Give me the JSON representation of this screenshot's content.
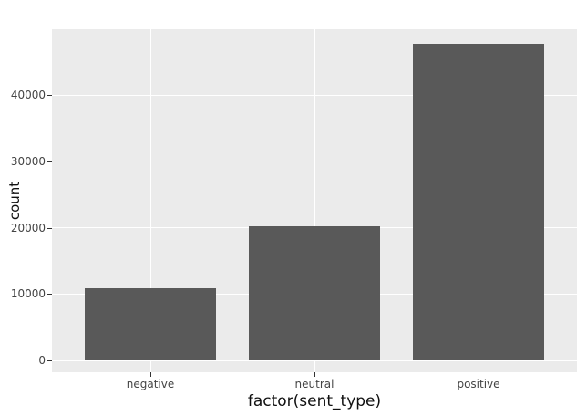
{
  "chart_data": {
    "type": "bar",
    "title": "",
    "xlabel": "factor(sent_type)",
    "ylabel": "count",
    "categories": [
      "negative",
      "neutral",
      "positive"
    ],
    "values": [
      10900,
      20200,
      47700
    ],
    "y_ticks": [
      0,
      10000,
      20000,
      30000,
      40000
    ],
    "y_tick_labels": [
      "0",
      "10000",
      "20000",
      "30000",
      "40000"
    ],
    "ylim": [
      0,
      49900
    ],
    "grid": "major horizontal and vertical white gridlines on gray panel",
    "legend": "none",
    "colors": {
      "bar": "#595959",
      "panel_background": "#EBEBEB",
      "gridline": "#FFFFFF",
      "axis_text": "#444444",
      "axis_title": "#101010",
      "tick_mark": "#333333",
      "page_background": "#FFFFFF"
    }
  }
}
